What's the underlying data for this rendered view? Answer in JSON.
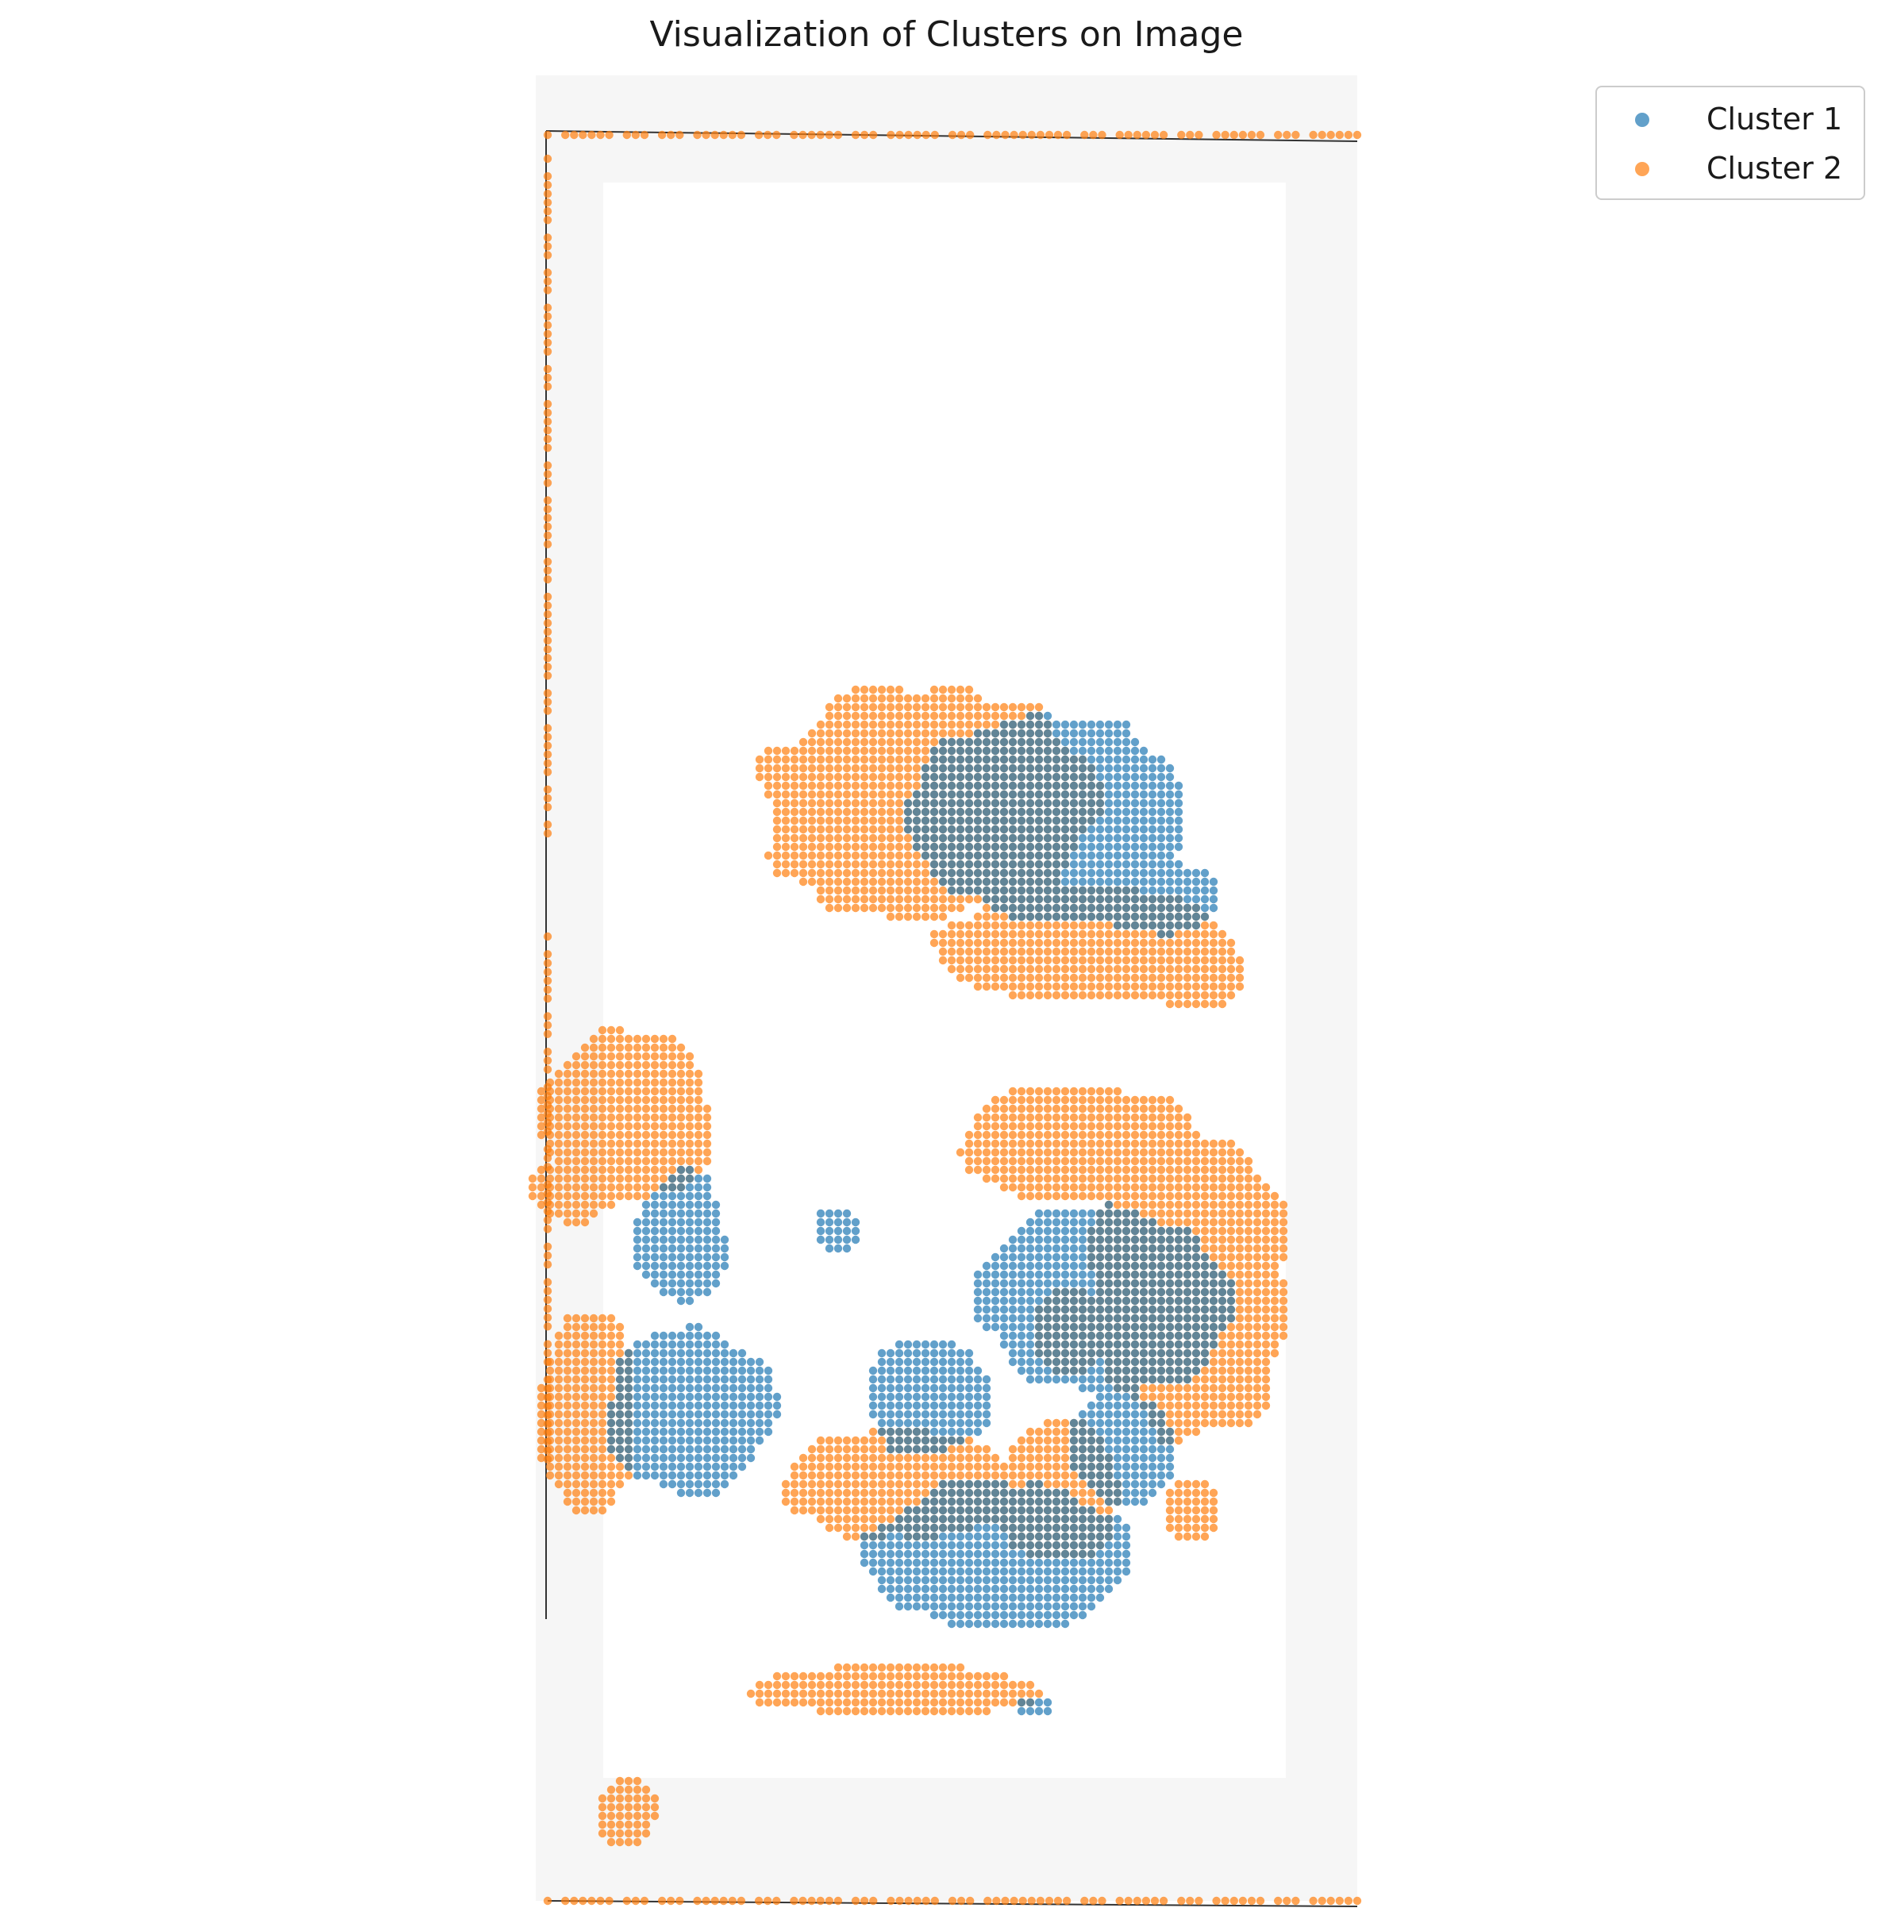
{
  "chart_data": {
    "type": "scatter",
    "title": "Visualization of Clusters on Image",
    "xlabel": "",
    "ylabel": "",
    "axes_visible": false,
    "grid": false,
    "legend_placement": "top-right outside",
    "background": "grayscale tissue slide image",
    "series": [
      {
        "name": "Cluster 1",
        "color": "#1f77b4",
        "regions": [
          {
            "shape": "blob",
            "center": [
              1320,
              1030
            ],
            "radii": [
              175,
              130
            ]
          },
          {
            "shape": "blob",
            "center": [
              1460,
              1130
            ],
            "radii": [
              80,
              45
            ]
          },
          {
            "shape": "blob",
            "center": [
              858,
              1560
            ],
            "radii": [
              58,
              85
            ]
          },
          {
            "shape": "blob",
            "center": [
              1052,
              1550
            ],
            "radii": [
              28,
              28
            ]
          },
          {
            "shape": "blob",
            "center": [
              1390,
              1640
            ],
            "radii": [
              160,
              120
            ]
          },
          {
            "shape": "blob",
            "center": [
              870,
              1775
            ],
            "radii": [
              110,
              105
            ]
          },
          {
            "shape": "blob",
            "center": [
              1170,
              1760
            ],
            "radii": [
              80,
              75
            ]
          },
          {
            "shape": "blob",
            "center": [
              1260,
              1960
            ],
            "radii": [
              170,
              95
            ]
          },
          {
            "shape": "blob",
            "center": [
              1415,
              1825
            ],
            "radii": [
              65,
              75
            ]
          },
          {
            "shape": "blob",
            "center": [
              1305,
              2150
            ],
            "radii": [
              22,
              12
            ]
          }
        ]
      },
      {
        "name": "Cluster 2",
        "color": "#ff7f0e",
        "regions": [
          {
            "shape": "blob",
            "center": [
              1170,
              1010
            ],
            "radii": [
              215,
              150
            ]
          },
          {
            "shape": "blob",
            "center": [
              1370,
              1190
            ],
            "radii": [
              190,
              75
            ]
          },
          {
            "shape": "blob",
            "center": [
              1500,
              1225
            ],
            "radii": [
              70,
              50
            ]
          },
          {
            "shape": "blob",
            "center": [
              790,
              1410
            ],
            "radii": [
              110,
              110
            ]
          },
          {
            "shape": "blob",
            "center": [
              720,
              1500
            ],
            "radii": [
              50,
              40
            ]
          },
          {
            "shape": "blob",
            "center": [
              1370,
              1440
            ],
            "radii": [
              155,
              75
            ]
          },
          {
            "shape": "blob",
            "center": [
              1500,
              1620
            ],
            "radii": [
              125,
              200
            ]
          },
          {
            "shape": "blob",
            "center": [
              1345,
              1680
            ],
            "radii": [
              45,
              60
            ]
          },
          {
            "shape": "blob",
            "center": [
              740,
              1780
            ],
            "radii": [
              65,
              130
            ]
          },
          {
            "shape": "blob",
            "center": [
              1140,
              1870
            ],
            "radii": [
              150,
              70
            ]
          },
          {
            "shape": "blob",
            "center": [
              1330,
              1880
            ],
            "radii": [
              80,
              90
            ]
          },
          {
            "shape": "blob",
            "center": [
              1500,
              1905
            ],
            "radii": [
              35,
              40
            ]
          },
          {
            "shape": "blob",
            "center": [
              1130,
              2130
            ],
            "radii": [
              185,
              32
            ]
          },
          {
            "shape": "blob",
            "center": [
              790,
              2285
            ],
            "radii": [
              40,
              45
            ]
          },
          {
            "shape": "band",
            "from": [
              690,
              170
            ],
            "to": [
              1710,
              170
            ],
            "thickness": 14
          },
          {
            "shape": "band",
            "from": [
              690,
              2395
            ],
            "to": [
              1710,
              2395
            ],
            "thickness": 14
          },
          {
            "shape": "band",
            "from": [
              690,
              200
            ],
            "to": [
              690,
              1050
            ],
            "thickness": 12
          },
          {
            "shape": "band",
            "from": [
              690,
              1180
            ],
            "to": [
              690,
              1850
            ],
            "thickness": 14
          }
        ]
      }
    ]
  }
}
